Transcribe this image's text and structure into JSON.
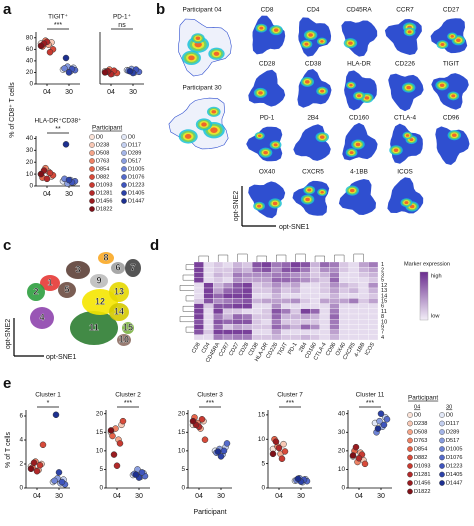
{
  "panel_labels": [
    "a",
    "b",
    "c",
    "d",
    "e"
  ],
  "panel_a": {
    "y_label": "% of CD8⁺ T cells",
    "charts": [
      {
        "type": "dot",
        "title": "TIGIT⁺",
        "categories": [
          "04",
          "30"
        ],
        "ylim": [
          0,
          90
        ],
        "yticks": [
          0,
          20,
          40,
          60,
          80
        ],
        "significance": "***",
        "groups": [
          {
            "values": [
              70,
              72,
              68,
              75,
              65,
              60,
              55,
              73,
              70,
              66
            ]
          },
          {
            "values": [
              25,
              28,
              22,
              30,
              27,
              24,
              26,
              20,
              45
            ]
          }
        ]
      },
      {
        "type": "dot",
        "title": "PD-1⁺",
        "categories": [
          "04",
          "30"
        ],
        "ylim": [
          0,
          90
        ],
        "significance": "ns",
        "groups": [
          {
            "values": [
              22,
              20,
              18,
              25,
              21,
              19,
              23,
              17,
              22,
              20
            ]
          },
          {
            "values": [
              24,
              22,
              20,
              26,
              23,
              21,
              25,
              19,
              22
            ]
          }
        ]
      },
      {
        "type": "dot",
        "title": "HLA-DR⁺CD38⁺",
        "categories": [
          "04",
          "30"
        ],
        "ylim": [
          0,
          42
        ],
        "yticks": [
          0,
          10,
          20,
          30,
          40
        ],
        "significance": "**",
        "groups": [
          {
            "values": [
              10,
              8,
              12,
              15,
              7,
              9,
              11,
              6,
              13,
              10
            ]
          },
          {
            "values": [
              4,
              3,
              5,
              2,
              6,
              4,
              3,
              5,
              35
            ]
          }
        ]
      }
    ],
    "legend": {
      "title": "Participant",
      "columns": [
        {
          "ids": [
            "D0",
            "D238",
            "D508",
            "D763",
            "D854",
            "D882",
            "D1093",
            "D1281",
            "D1456",
            "D1822"
          ],
          "colors": [
            "#fbe3d8",
            "#f8c8b5",
            "#f4a58a",
            "#ee8366",
            "#e5644a",
            "#d84b3a",
            "#c83a31",
            "#b3292a",
            "#9a1c20",
            "#7f1018"
          ]
        },
        {
          "ids": [
            "D0",
            "D117",
            "D289",
            "D517",
            "D1005",
            "D1076",
            "D1223",
            "D1405",
            "D1447"
          ],
          "colors": [
            "#e2e8f7",
            "#c4d0f0",
            "#a5b6e8",
            "#8a9edf",
            "#6e84d6",
            "#566ccb",
            "#3f55bd",
            "#2c42a8",
            "#1d3090"
          ]
        }
      ]
    }
  },
  "panel_b": {
    "participant_maps": [
      "Participant 04",
      "Participant 30"
    ],
    "markers": [
      "CD8",
      "CD4",
      "CD45RA",
      "CCR7",
      "CD27",
      "CD28",
      "CD38",
      "HLA-DR",
      "CD226",
      "TIGIT",
      "PD-1",
      "2B4",
      "CD160",
      "CTLA-4",
      "CD96",
      "OX40",
      "CXCR5",
      "4-1BB",
      "ICOS"
    ],
    "x_label": "opt-SNE1",
    "y_label": "opt-SNE2"
  },
  "panel_c": {
    "clusters": [
      "1",
      "2",
      "3",
      "4",
      "5",
      "6",
      "7",
      "8",
      "9",
      "10",
      "11",
      "12",
      "13",
      "14",
      "15"
    ],
    "x_label": "opt-SNE1",
    "y_label": "opt-SNE2"
  },
  "panel_d": {
    "type": "heatmap",
    "x": [
      "CD8",
      "CD4",
      "CD45RA",
      "CCR7",
      "CD27",
      "CD28",
      "CD38",
      "HLA-DR",
      "CD226",
      "TIGIT",
      "PD-1",
      "2B4",
      "CD160",
      "CTLA-4",
      "CD96",
      "OX40",
      "CXCR5",
      "4-1BB",
      "ICOS"
    ],
    "y": [
      "1",
      "2",
      "3",
      "5",
      "12",
      "13",
      "14",
      "15",
      "6",
      "11",
      "8",
      "10",
      "9",
      "7",
      "4"
    ],
    "values": [
      [
        0.9,
        0.1,
        0.2,
        0.1,
        0.3,
        0.2,
        0.8,
        0.9,
        0.6,
        0.7,
        0.9,
        0.8,
        0.3,
        0.7,
        0.6,
        0.2,
        0.1,
        0.4,
        0.6
      ],
      [
        0.9,
        0.1,
        0.2,
        0.2,
        0.4,
        0.3,
        0.7,
        0.8,
        0.5,
        0.8,
        0.8,
        0.6,
        0.2,
        0.5,
        0.5,
        0.2,
        0.1,
        0.3,
        0.4
      ],
      [
        0.9,
        0.1,
        0.3,
        0.2,
        0.6,
        0.5,
        0.5,
        0.5,
        0.6,
        0.6,
        0.5,
        0.4,
        0.2,
        0.3,
        0.6,
        0.1,
        0.1,
        0.2,
        0.3
      ],
      [
        0.9,
        0.1,
        0.2,
        0.1,
        0.5,
        0.4,
        0.4,
        0.4,
        0.7,
        0.7,
        0.6,
        0.5,
        0.3,
        0.2,
        0.7,
        0.1,
        0.1,
        0.1,
        0.2
      ],
      [
        0.1,
        0.9,
        0.3,
        0.5,
        0.8,
        0.9,
        0.2,
        0.3,
        0.5,
        0.3,
        0.4,
        0.1,
        0.1,
        0.2,
        0.5,
        0.3,
        0.2,
        0.1,
        0.5
      ],
      [
        0.1,
        0.9,
        0.4,
        0.7,
        0.8,
        0.9,
        0.2,
        0.2,
        0.4,
        0.2,
        0.3,
        0.1,
        0.1,
        0.2,
        0.4,
        0.2,
        0.3,
        0.1,
        0.3
      ],
      [
        0.1,
        0.9,
        0.7,
        0.9,
        0.9,
        0.9,
        0.1,
        0.1,
        0.3,
        0.1,
        0.1,
        0.1,
        0.1,
        0.1,
        0.3,
        0.1,
        0.1,
        0.1,
        0.2
      ],
      [
        0.2,
        0.8,
        0.5,
        0.6,
        0.7,
        0.8,
        0.3,
        0.4,
        0.4,
        0.4,
        0.5,
        0.2,
        0.1,
        0.4,
        0.4,
        0.4,
        0.6,
        0.2,
        0.4
      ],
      [
        0.9,
        0.2,
        0.8,
        0.8,
        0.9,
        0.9,
        0.1,
        0.1,
        0.5,
        0.1,
        0.1,
        0.1,
        0.1,
        0.1,
        0.5,
        0.1,
        0.1,
        0.1,
        0.1
      ],
      [
        0.9,
        0.1,
        0.9,
        0.2,
        0.2,
        0.1,
        0.1,
        0.2,
        0.8,
        0.6,
        0.2,
        0.9,
        0.7,
        0.1,
        0.6,
        0.1,
        0.1,
        0.1,
        0.1
      ],
      [
        0.9,
        0.1,
        0.6,
        0.3,
        0.7,
        0.6,
        0.2,
        0.2,
        0.7,
        0.3,
        0.3,
        0.4,
        0.3,
        0.1,
        0.7,
        0.1,
        0.1,
        0.1,
        0.1
      ],
      [
        0.8,
        0.1,
        0.8,
        0.7,
        0.8,
        0.8,
        0.2,
        0.1,
        0.6,
        0.2,
        0.2,
        0.2,
        0.2,
        0.1,
        0.6,
        0.1,
        0.1,
        0.1,
        0.1
      ],
      [
        0.9,
        0.1,
        0.7,
        0.2,
        0.4,
        0.3,
        0.2,
        0.2,
        0.7,
        0.5,
        0.3,
        0.7,
        0.5,
        0.1,
        0.6,
        0.1,
        0.1,
        0.1,
        0.1
      ],
      [
        0.8,
        0.2,
        0.9,
        0.9,
        0.9,
        0.9,
        0.1,
        0.1,
        0.4,
        0.1,
        0.1,
        0.1,
        0.1,
        0.1,
        0.4,
        0.1,
        0.1,
        0.1,
        0.1
      ],
      [
        0.1,
        0.1,
        0.6,
        0.5,
        0.6,
        0.6,
        0.2,
        0.2,
        0.3,
        0.2,
        0.2,
        0.3,
        0.2,
        0.1,
        0.3,
        0.1,
        0.1,
        0.1,
        0.1
      ]
    ],
    "colors": [
      "#f3eef8",
      "#6b2d8f"
    ],
    "legend": {
      "title": "Marker expression",
      "high": "high",
      "low": "low"
    }
  },
  "panel_e": {
    "y_label": "% of T cells",
    "x_label": "Participant",
    "charts": [
      {
        "type": "dot",
        "title": "Cluster 1",
        "categories": [
          "04",
          "30"
        ],
        "ylim": [
          0,
          6.5
        ],
        "yticks": [
          0,
          2,
          4,
          6
        ],
        "significance": "*",
        "groups": [
          {
            "values": [
              1.8,
              2.0,
              1.5,
              2.2,
              1.7,
              3.6,
              1.9,
              1.4,
              2.1,
              1.6
            ]
          },
          {
            "values": [
              0.5,
              0.7,
              0.4,
              0.8,
              0.6,
              0.3,
              0.5,
              1.3,
              6.1
            ]
          }
        ]
      },
      {
        "type": "dot",
        "title": "Cluster 2",
        "categories": [
          "04",
          "30"
        ],
        "ylim": [
          0,
          21
        ],
        "yticks": [
          0,
          5,
          10,
          15,
          20
        ],
        "significance": "***",
        "groups": [
          {
            "values": [
              15,
              17,
              13,
              16,
              14,
              18,
              12,
              6,
              9,
              15.5
            ]
          },
          {
            "values": [
              3.5,
              4,
              3,
              5,
              3.8,
              3.2,
              4.2,
              2.8,
              3.6
            ]
          }
        ]
      },
      {
        "type": "dot",
        "title": "Cluster 3",
        "categories": [
          "04",
          "30"
        ],
        "ylim": [
          0,
          21
        ],
        "yticks": [
          0,
          5,
          10,
          15,
          20
        ],
        "significance": "***",
        "groups": [
          {
            "values": [
              17,
              18,
              16,
              17.5,
              19,
              13,
              18.5,
              16.5,
              17,
              18
            ]
          },
          {
            "values": [
              10,
              11,
              9,
              10.5,
              9.5,
              12,
              10,
              8.5,
              9.8
            ]
          }
        ]
      },
      {
        "type": "dot",
        "title": "Cluster 7",
        "categories": [
          "04",
          "30"
        ],
        "ylim": [
          0,
          16
        ],
        "yticks": [
          0,
          5,
          10,
          15
        ],
        "significance": "***",
        "groups": [
          {
            "values": [
              8,
              9,
              7,
              8.5,
              10,
              7.5,
              6,
              8.2,
              9.5,
              7
            ]
          },
          {
            "values": [
              1.5,
              1.8,
              1.2,
              2,
              1.6,
              1.4,
              1.7,
              1.3,
              1.9
            ]
          }
        ]
      },
      {
        "type": "dot",
        "title": "Cluster 11",
        "categories": [
          "04",
          "30"
        ],
        "ylim": [
          0,
          42
        ],
        "yticks": [
          0,
          10,
          20,
          30,
          40
        ],
        "significance": "***",
        "groups": [
          {
            "values": [
              17,
              15,
              19,
              14,
              20,
              13,
              18,
              16,
              22,
              17.5
            ]
          },
          {
            "values": [
              35,
              38,
              33,
              36,
              30,
              37,
              34,
              40,
              32
            ]
          }
        ]
      }
    ],
    "legend": {
      "title": "Participant",
      "columns": [
        {
          "name": "04",
          "ids": [
            "D0",
            "D238",
            "D508",
            "D763",
            "D854",
            "D882",
            "D1093",
            "D1281",
            "D1456",
            "D1822"
          ],
          "colors": [
            "#fbe3d8",
            "#f8c8b5",
            "#f4a58a",
            "#ee8366",
            "#e5644a",
            "#d84b3a",
            "#c83a31",
            "#b3292a",
            "#9a1c20",
            "#7f1018"
          ]
        },
        {
          "name": "30",
          "ids": [
            "D0",
            "D117",
            "D289",
            "D517",
            "D1005",
            "D1076",
            "D1223",
            "D1405",
            "D1447"
          ],
          "colors": [
            "#e2e8f7",
            "#c4d0f0",
            "#a5b6e8",
            "#8a9edf",
            "#6e84d6",
            "#566ccb",
            "#3f55bd",
            "#2c42a8",
            "#1d3090"
          ]
        }
      ]
    }
  }
}
